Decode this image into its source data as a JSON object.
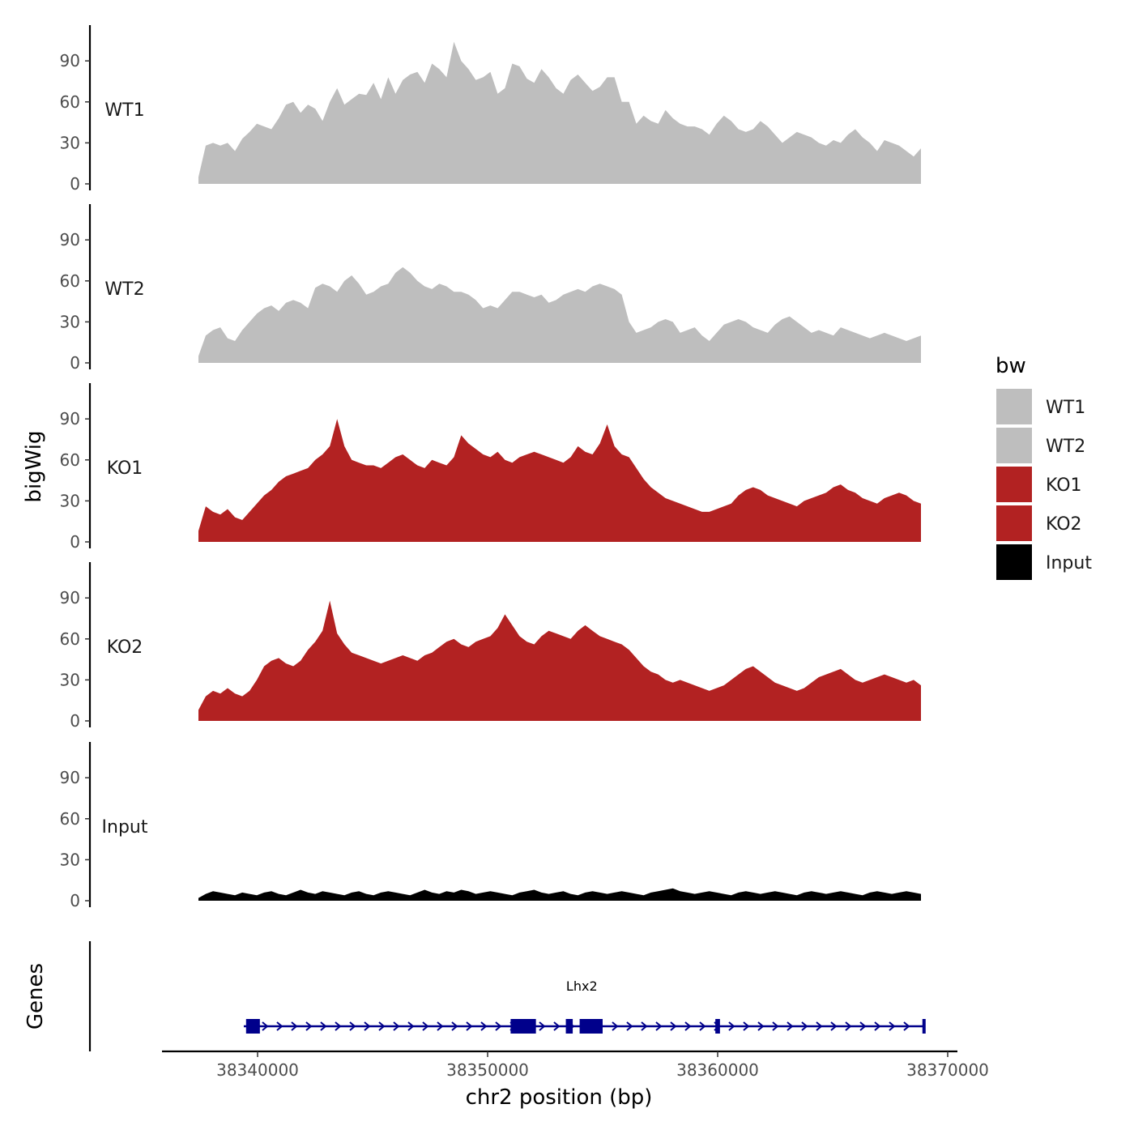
{
  "chart_data": {
    "type": "area",
    "title": "",
    "ylabel": "bigWig",
    "xlabel": "chr2 position (bp)",
    "region": {
      "chrom": "chr2",
      "start": 38337500,
      "end": 38369800
    },
    "ylim": [
      0,
      115
    ],
    "yticks": [
      0,
      30,
      60,
      90
    ],
    "xticks": [
      38340000,
      38350000,
      38360000,
      38370000
    ],
    "xtick_labels": [
      "38340000",
      "38350000",
      "38360000",
      "38370000"
    ],
    "legend": {
      "title": "bw",
      "position": "right",
      "entries": [
        {
          "name": "WT1",
          "color": "#bebebe"
        },
        {
          "name": "WT2",
          "color": "#bebebe"
        },
        {
          "name": "KO1",
          "color": "#b22222"
        },
        {
          "name": "KO2",
          "color": "#b22222"
        },
        {
          "name": "Input",
          "color": "#000000"
        }
      ]
    },
    "tracks": [
      {
        "name": "WT1",
        "color": "#bebebe",
        "values": [
          5,
          28,
          30,
          28,
          30,
          24,
          33,
          38,
          44,
          42,
          40,
          48,
          58,
          60,
          52,
          58,
          55,
          46,
          60,
          70,
          58,
          62,
          66,
          65,
          74,
          62,
          78,
          66,
          76,
          80,
          82,
          74,
          88,
          84,
          78,
          104,
          90,
          84,
          76,
          78,
          82,
          66,
          70,
          88,
          86,
          77,
          74,
          84,
          78,
          70,
          66,
          76,
          80,
          74,
          68,
          71,
          78,
          78,
          60,
          60,
          44,
          50,
          46,
          44,
          54,
          48,
          44,
          42,
          42,
          40,
          36,
          44,
          50,
          46,
          40,
          38,
          40,
          46,
          42,
          36,
          30,
          34,
          38,
          36,
          34,
          30,
          28,
          32,
          30,
          36,
          40,
          34,
          30,
          24,
          32,
          30,
          28,
          24,
          20,
          26
        ]
      },
      {
        "name": "WT2",
        "color": "#bebebe",
        "values": [
          5,
          20,
          24,
          26,
          18,
          16,
          24,
          30,
          36,
          40,
          42,
          38,
          44,
          46,
          44,
          40,
          55,
          58,
          56,
          52,
          60,
          64,
          58,
          50,
          52,
          56,
          58,
          66,
          70,
          66,
          60,
          56,
          54,
          58,
          56,
          52,
          52,
          50,
          46,
          40,
          42,
          40,
          46,
          52,
          52,
          50,
          48,
          50,
          44,
          46,
          50,
          52,
          54,
          52,
          56,
          58,
          56,
          54,
          50,
          30,
          22,
          24,
          26,
          30,
          32,
          30,
          22,
          24,
          26,
          20,
          16,
          22,
          28,
          30,
          32,
          30,
          26,
          24,
          22,
          28,
          32,
          34,
          30,
          26,
          22,
          24,
          22,
          20,
          26,
          24,
          22,
          20,
          18,
          20,
          22,
          20,
          18,
          16,
          18,
          20
        ]
      },
      {
        "name": "KO1",
        "color": "#b22222",
        "values": [
          8,
          26,
          22,
          20,
          24,
          18,
          16,
          22,
          28,
          34,
          38,
          44,
          48,
          50,
          52,
          54,
          60,
          64,
          70,
          90,
          70,
          60,
          58,
          56,
          56,
          54,
          58,
          62,
          64,
          60,
          56,
          54,
          60,
          58,
          56,
          62,
          78,
          72,
          68,
          64,
          62,
          66,
          60,
          58,
          62,
          64,
          66,
          64,
          62,
          60,
          58,
          62,
          70,
          66,
          64,
          72,
          86,
          70,
          64,
          62,
          54,
          46,
          40,
          36,
          32,
          30,
          28,
          26,
          24,
          22,
          22,
          24,
          26,
          28,
          34,
          38,
          40,
          38,
          34,
          32,
          30,
          28,
          26,
          30,
          32,
          34,
          36,
          40,
          42,
          38,
          36,
          32,
          30,
          28,
          32,
          34,
          36,
          34,
          30,
          28
        ]
      },
      {
        "name": "KO2",
        "color": "#b22222",
        "values": [
          8,
          18,
          22,
          20,
          24,
          20,
          18,
          22,
          30,
          40,
          44,
          46,
          42,
          40,
          44,
          52,
          58,
          66,
          88,
          64,
          56,
          50,
          48,
          46,
          44,
          42,
          44,
          46,
          48,
          46,
          44,
          48,
          50,
          54,
          58,
          60,
          56,
          54,
          58,
          60,
          62,
          68,
          78,
          70,
          62,
          58,
          56,
          62,
          66,
          64,
          62,
          60,
          66,
          70,
          66,
          62,
          60,
          58,
          56,
          52,
          46,
          40,
          36,
          34,
          30,
          28,
          30,
          28,
          26,
          24,
          22,
          24,
          26,
          30,
          34,
          38,
          40,
          36,
          32,
          28,
          26,
          24,
          22,
          24,
          28,
          32,
          34,
          36,
          38,
          34,
          30,
          28,
          30,
          32,
          34,
          32,
          30,
          28,
          30,
          26
        ]
      },
      {
        "name": "Input",
        "color": "#000000",
        "values": [
          2,
          5,
          7,
          6,
          5,
          4,
          6,
          5,
          4,
          6,
          7,
          5,
          4,
          6,
          8,
          6,
          5,
          7,
          6,
          5,
          4,
          6,
          7,
          5,
          4,
          6,
          7,
          6,
          5,
          4,
          6,
          8,
          6,
          5,
          7,
          6,
          8,
          7,
          5,
          6,
          7,
          6,
          5,
          4,
          6,
          7,
          8,
          6,
          5,
          6,
          7,
          5,
          4,
          6,
          7,
          6,
          5,
          6,
          7,
          6,
          5,
          4,
          6,
          7,
          8,
          9,
          7,
          6,
          5,
          6,
          7,
          6,
          5,
          4,
          6,
          7,
          6,
          5,
          6,
          7,
          6,
          5,
          4,
          6,
          7,
          6,
          5,
          6,
          7,
          6,
          5,
          4,
          6,
          7,
          6,
          5,
          6,
          7,
          6,
          5
        ]
      }
    ],
    "gene_track": {
      "label": "Genes",
      "genes": [
        {
          "name": "Lhx2",
          "strand": "+",
          "start": 38339400,
          "end": 38369800,
          "color": "#00008b",
          "exons": [
            [
              38339500,
              38340100
            ],
            [
              38351000,
              38352100
            ],
            [
              38353400,
              38353700
            ],
            [
              38354000,
              38355000
            ],
            [
              38359900,
              38360100
            ],
            [
              38368900,
              38369800
            ]
          ]
        }
      ]
    }
  }
}
